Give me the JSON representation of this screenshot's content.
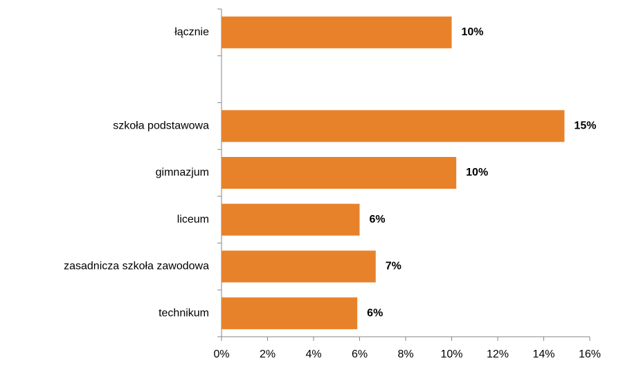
{
  "chart_data": {
    "type": "hbar",
    "categories": [
      "łącznie",
      null,
      "szkoła podstawowa",
      "gimnazjum",
      "liceum",
      "zasadnicza szkoła zawodowa",
      "technikum"
    ],
    "values": [
      10.0,
      null,
      14.9,
      10.2,
      6.0,
      6.7,
      5.9
    ],
    "value_labels": [
      "10%",
      null,
      "15%",
      "10%",
      "6%",
      "7%",
      "6%"
    ],
    "color": "#e8822a",
    "xlim": [
      0,
      16
    ],
    "xticks": [
      {
        "value": 0,
        "label": "0%"
      },
      {
        "value": 2,
        "label": "2%"
      },
      {
        "value": 4,
        "label": "4%"
      },
      {
        "value": 6,
        "label": "6%"
      },
      {
        "value": 8,
        "label": "8%"
      },
      {
        "value": 10,
        "label": "10%"
      },
      {
        "value": 12,
        "label": "12%"
      },
      {
        "value": 14,
        "label": "14%"
      },
      {
        "value": 16,
        "label": "16%"
      }
    ],
    "grid": false
  }
}
